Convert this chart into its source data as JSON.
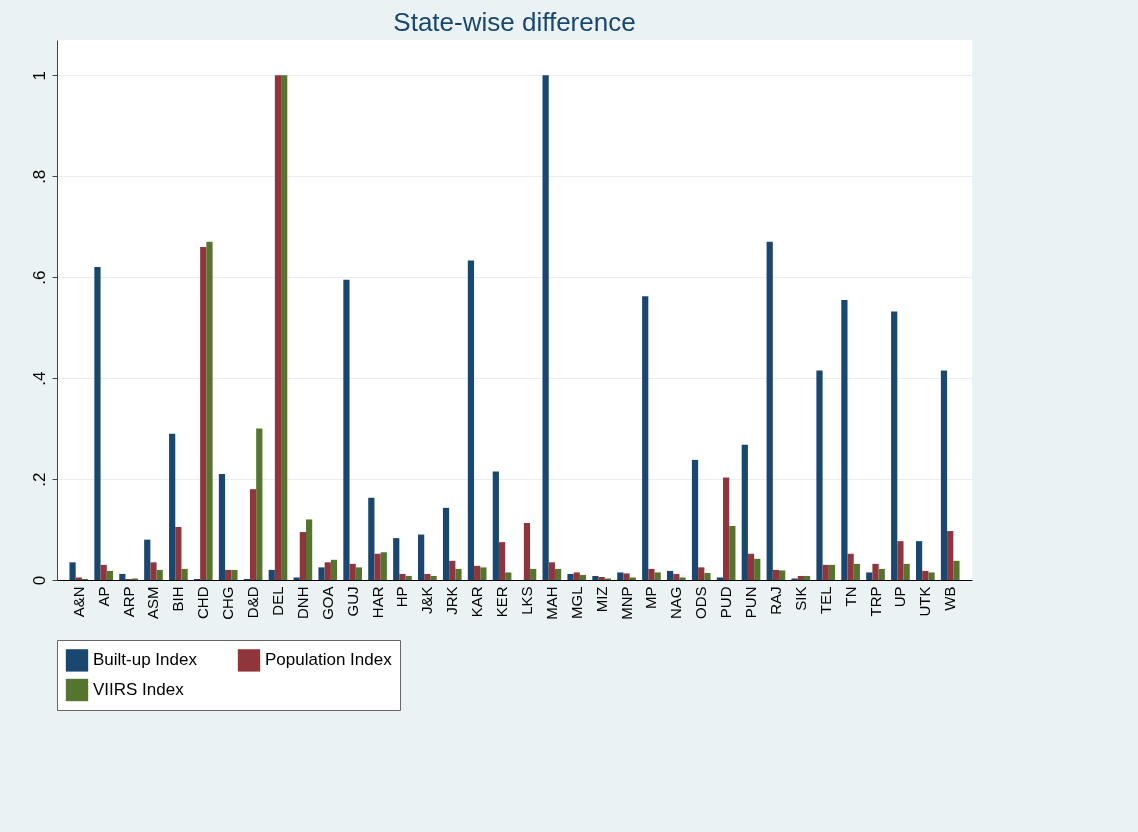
{
  "chart_data": {
    "type": "bar",
    "title": "State-wise difference",
    "categories": [
      "A&N",
      "AP",
      "ARP",
      "ASM",
      "BIH",
      "CHD",
      "CHG",
      "D&D",
      "DEL",
      "DNH",
      "GOA",
      "GUJ",
      "HAR",
      "HP",
      "J&K",
      "JRK",
      "KAR",
      "KER",
      "LKS",
      "MAH",
      "MGL",
      "MIZ",
      "MNP",
      "MP",
      "NAG",
      "ODS",
      "PUD",
      "PUN",
      "RAJ",
      "SIK",
      "TEL",
      "TN",
      "TRP",
      "UP",
      "UTK",
      "WB"
    ],
    "series": [
      {
        "name": "Built-up Index",
        "color": "#1a476f",
        "values": [
          0.035,
          0.62,
          0.012,
          0.08,
          0.29,
          0.002,
          0.21,
          0.002,
          0.02,
          0.005,
          0.025,
          0.595,
          0.163,
          0.083,
          0.09,
          0.143,
          0.633,
          0.215,
          0,
          1.0,
          0.012,
          0.008,
          0.015,
          0.562,
          0.018,
          0.238,
          0.005,
          0.268,
          0.67,
          0.003,
          0.415,
          0.555,
          0.015,
          0.532,
          0.077,
          0.415
        ]
      },
      {
        "name": "Population Index",
        "color": "#90353b",
        "values": [
          0.005,
          0.03,
          0.002,
          0.035,
          0.105,
          0.66,
          0.02,
          0.18,
          1.0,
          0.095,
          0.035,
          0.032,
          0.052,
          0.012,
          0.012,
          0.038,
          0.028,
          0.075,
          0.113,
          0.035,
          0.015,
          0.006,
          0.013,
          0.022,
          0.012,
          0.025,
          0.203,
          0.052,
          0.02,
          0.008,
          0.03,
          0.052,
          0.032,
          0.077,
          0.018,
          0.097
        ]
      },
      {
        "name": "VIIRS Index",
        "color": "#55752f",
        "values": [
          0.002,
          0.018,
          0.003,
          0.02,
          0.022,
          0.67,
          0.02,
          0.3,
          1.0,
          0.12,
          0.04,
          0.025,
          0.055,
          0.008,
          0.008,
          0.022,
          0.025,
          0.015,
          0.022,
          0.022,
          0.01,
          0.003,
          0.005,
          0.015,
          0.005,
          0.014,
          0.107,
          0.042,
          0.019,
          0.008,
          0.03,
          0.032,
          0.022,
          0.032,
          0.015,
          0.038
        ]
      }
    ],
    "ylim": [
      0,
      1.07
    ],
    "yticks": [
      0,
      {
        "value": 0.2,
        "label": ".2"
      },
      {
        "value": 0.4,
        "label": ".4"
      },
      {
        "value": 0.6,
        "label": ".6"
      },
      {
        "value": 0.8,
        "label": ".8"
      },
      1
    ],
    "grid": "y",
    "legend": "bottom"
  }
}
